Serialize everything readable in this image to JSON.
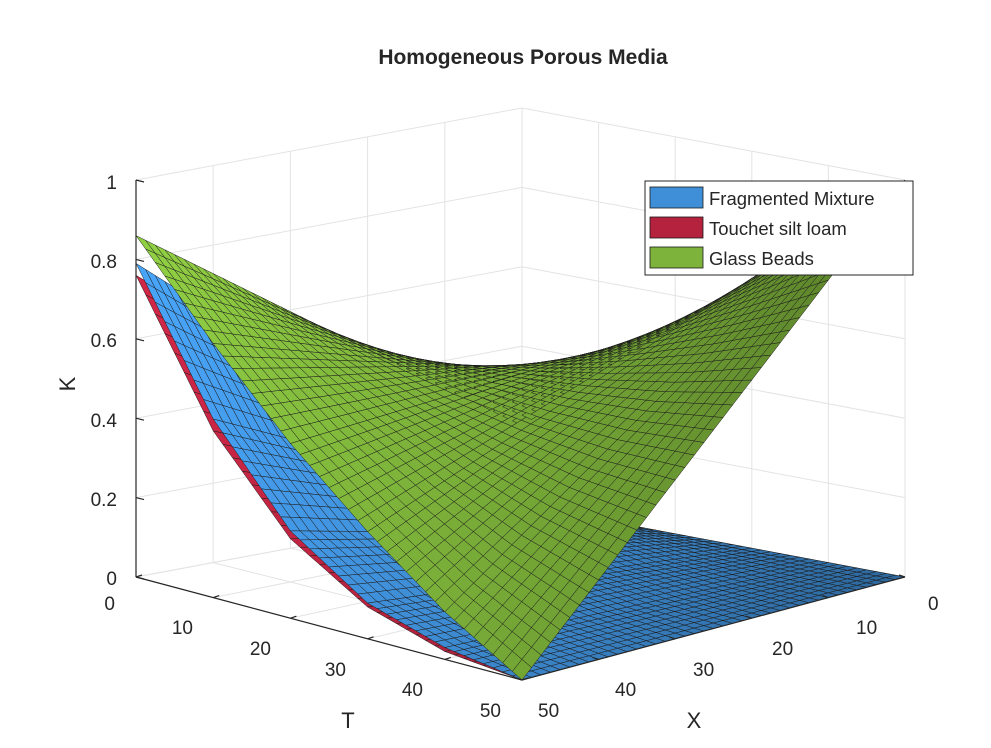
{
  "chart_data": {
    "type": "surface",
    "title": "Homogeneous Porous Media",
    "xlabel": "X",
    "ylabel": "T",
    "zlabel": "K",
    "xlim": [
      0,
      50
    ],
    "ylim": [
      0,
      50
    ],
    "zlim": [
      0,
      1
    ],
    "x_ticks": [
      "0",
      "10",
      "20",
      "30",
      "40",
      "50"
    ],
    "y_ticks": [
      "0",
      "10",
      "20",
      "30",
      "40",
      "50"
    ],
    "z_ticks": [
      "0",
      "0.2",
      "0.4",
      "0.6",
      "0.8",
      "1"
    ],
    "grid": true,
    "legend_position": "top-right",
    "series": [
      {
        "name": "Fragmented Mixture",
        "color": "#3f8fd8",
        "grid_size": 40,
        "corner_values": {
          "x0_t0": 0.0,
          "x0_t50": 0.0,
          "x50_t0": 0.79,
          "x50_t50": 0.0
        },
        "x50_values": {
          "t": [
            0,
            10,
            20,
            30,
            40,
            50
          ],
          "K": [
            0.79,
            0.45,
            0.22,
            0.09,
            0.03,
            0.0
          ]
        }
      },
      {
        "name": "Touchet silt loam",
        "color": "#b5223e",
        "grid_size": 40,
        "corner_values": {
          "x0_t0": 0.0,
          "x0_t50": 0.0,
          "x50_t0": 0.76,
          "x50_t50": 0.0
        },
        "x50_values": {
          "t": [
            0,
            10,
            20,
            30,
            40,
            50
          ],
          "K": [
            0.76,
            0.42,
            0.2,
            0.08,
            0.02,
            0.0
          ]
        }
      },
      {
        "name": "Glass Beads",
        "color": "#7db33a",
        "grid_size": 40,
        "corner_values": {
          "x0_t0": 0.2,
          "x0_t50": 1.0,
          "x50_t0": 0.86,
          "x50_t50": 0.0
        },
        "x50_values": {
          "t": [
            0,
            10,
            20,
            30,
            40,
            50
          ],
          "K": [
            0.86,
            0.64,
            0.44,
            0.27,
            0.12,
            0.0
          ]
        }
      }
    ]
  }
}
